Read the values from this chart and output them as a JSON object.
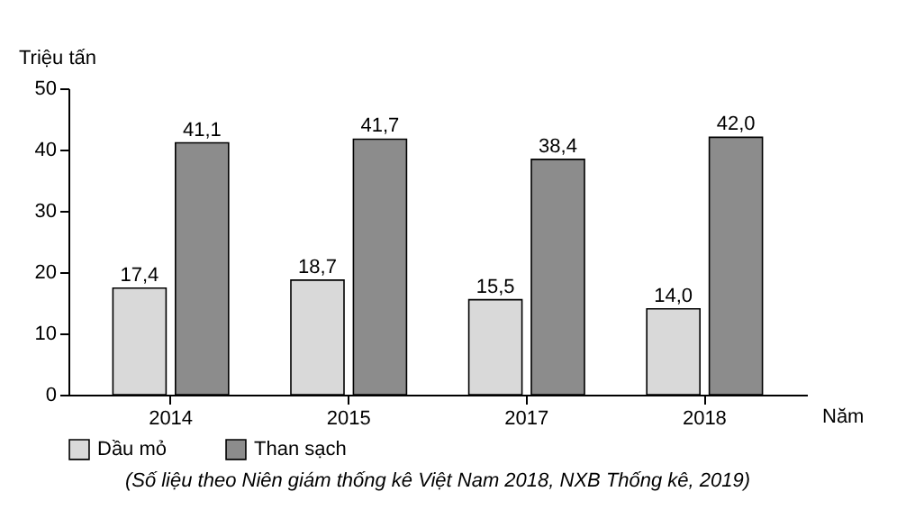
{
  "chart_data": {
    "type": "bar",
    "xlabel": "Năm",
    "ylabel": "Triệu tấn",
    "categories": [
      "2014",
      "2015",
      "2017",
      "2018"
    ],
    "series": [
      {
        "name": "Dầu mỏ",
        "color": "#d9d9d9",
        "values": [
          17.4,
          18.7,
          15.5,
          14.0
        ],
        "value_labels": [
          "17,4",
          "18,7",
          "15,5",
          "14,0"
        ]
      },
      {
        "name": "Than sạch",
        "color": "#8c8c8c",
        "values": [
          41.1,
          41.7,
          38.4,
          42.0
        ],
        "value_labels": [
          "41,1",
          "41,7",
          "38,4",
          "42,0"
        ]
      }
    ],
    "ylim": [
      0,
      50
    ],
    "yticks": [
      0,
      10,
      20,
      30,
      40,
      50
    ],
    "grid": false,
    "legend": "bottom",
    "annotations": [
      "(Số liệu theo Niên giám thống kê Việt Nam 2018, NXB Thống kê, 2019)"
    ]
  }
}
